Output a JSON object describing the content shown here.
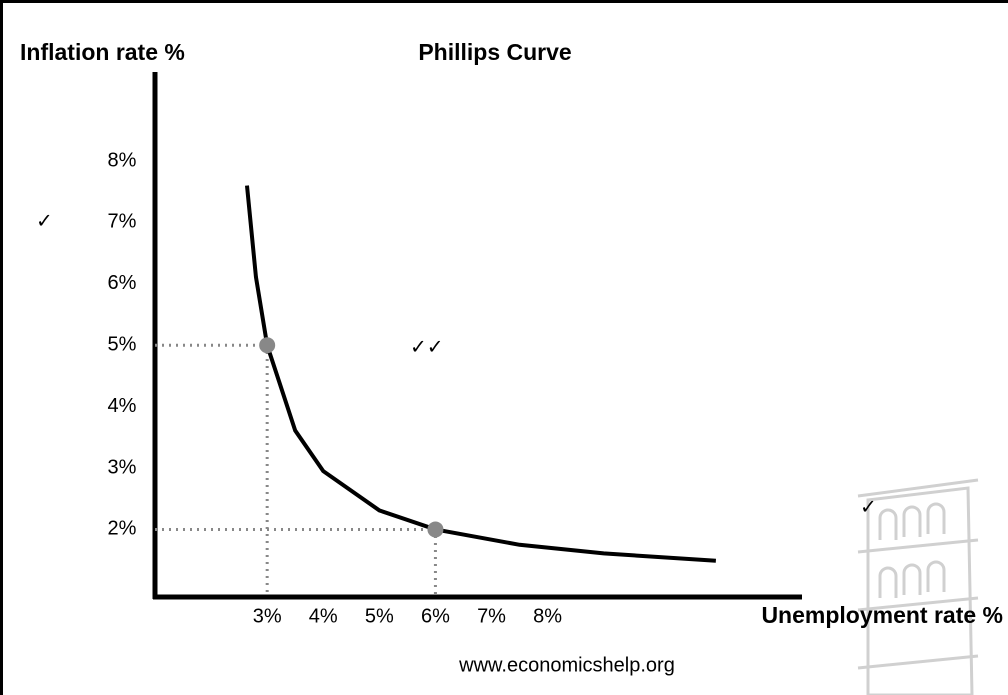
{
  "chart_data": {
    "type": "line",
    "title": "Phillips Curve",
    "y_label": "Inflation rate %",
    "x_label": "Unemployment rate %",
    "source": "www.economicshelp.org",
    "annotations": [
      "✓",
      "✓✓",
      "✓"
    ],
    "series": [
      {
        "color": "#000000",
        "x": [
          2.64,
          2.8,
          3,
          3.5,
          4,
          5,
          6,
          7.5,
          9,
          11
        ],
        "values": [
          7.6,
          6.11,
          5,
          3.61,
          2.95,
          2.31,
          2,
          1.75,
          1.61,
          1.49
        ]
      }
    ],
    "points": {
      "color": "#888888",
      "x": [
        3,
        6
      ],
      "values": [
        5,
        2
      ]
    },
    "xlim": [
      1,
      12.5
    ],
    "ylim": [
      0.9,
      9.4
    ],
    "xticks": [
      {
        "value": 3,
        "label": "3%"
      },
      {
        "value": 4,
        "label": "4%"
      },
      {
        "value": 5,
        "label": "5%"
      },
      {
        "value": 6,
        "label": "6%"
      },
      {
        "value": 7,
        "label": "7%"
      },
      {
        "value": 8,
        "label": "8%"
      }
    ],
    "yticks": [
      {
        "value": 2,
        "label": "2%"
      },
      {
        "value": 3,
        "label": "3%"
      },
      {
        "value": 4,
        "label": "4%"
      },
      {
        "value": 5,
        "label": "5%"
      },
      {
        "value": 6,
        "label": "6%"
      },
      {
        "value": 7,
        "label": "7%"
      },
      {
        "value": 8,
        "label": "8%"
      }
    ],
    "grid": false
  }
}
